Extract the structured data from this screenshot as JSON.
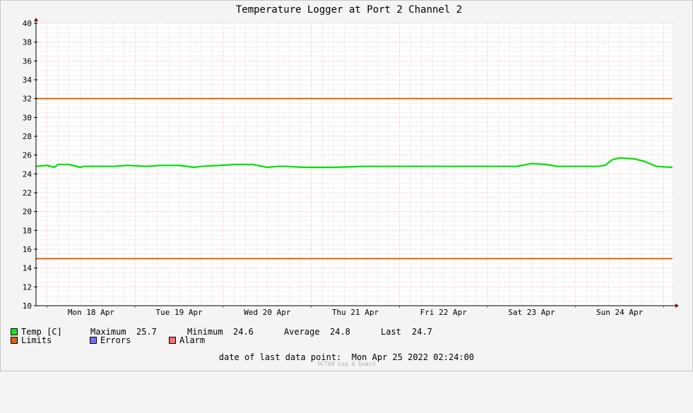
{
  "chart_data": {
    "type": "line",
    "title": "Temperature Logger at Port 2 Channel 2",
    "xlabel": "",
    "ylabel": "",
    "ylim": [
      10,
      40
    ],
    "yticks": [
      10,
      12,
      14,
      16,
      18,
      20,
      22,
      24,
      26,
      28,
      30,
      32,
      34,
      36,
      38,
      40
    ],
    "xlim": [
      "2022-04-17 21:00",
      "2022-04-25 02:24"
    ],
    "xtick_labels": [
      "Mon 18 Apr",
      "Tue 19 Apr",
      "Wed 20 Apr",
      "Thu 21 Apr",
      "Fri 22 Apr",
      "Sat 23 Apr",
      "Sun 24 Apr"
    ],
    "xtick_dates": [
      "2022-04-18 12:00",
      "2022-04-19 12:00",
      "2022-04-20 12:00",
      "2022-04-21 12:00",
      "2022-04-22 12:00",
      "2022-04-23 12:00",
      "2022-04-24 12:00"
    ],
    "grid": true,
    "legend_position": "bottom-left",
    "series": [
      {
        "name": "Temp [C]",
        "color": "#00e000",
        "x": [
          "2022-04-17 21:00",
          "2022-04-18 00:00",
          "2022-04-18 02:00",
          "2022-04-18 03:00",
          "2022-04-18 06:00",
          "2022-04-18 09:00",
          "2022-04-18 10:00",
          "2022-04-18 14:00",
          "2022-04-18 18:00",
          "2022-04-18 22:00",
          "2022-04-19 03:00",
          "2022-04-19 07:00",
          "2022-04-19 12:00",
          "2022-04-19 16:00",
          "2022-04-19 18:00",
          "2022-04-19 23:00",
          "2022-04-20 03:00",
          "2022-04-20 08:00",
          "2022-04-20 12:00",
          "2022-04-20 15:00",
          "2022-04-20 17:00",
          "2022-04-20 22:00",
          "2022-04-21 06:00",
          "2022-04-21 14:00",
          "2022-04-22 00:00",
          "2022-04-22 08:00",
          "2022-04-22 16:00",
          "2022-04-23 00:00",
          "2022-04-23 08:00",
          "2022-04-23 12:00",
          "2022-04-23 16:00",
          "2022-04-23 19:00",
          "2022-04-24 00:00",
          "2022-04-24 06:00",
          "2022-04-24 08:00",
          "2022-04-24 10:00",
          "2022-04-24 12:00",
          "2022-04-24 16:00",
          "2022-04-24 19:00",
          "2022-04-24 22:00",
          "2022-04-25 02:24"
        ],
        "values": [
          24.8,
          24.9,
          24.7,
          25.0,
          25.0,
          24.7,
          24.8,
          24.8,
          24.8,
          24.9,
          24.8,
          24.9,
          24.9,
          24.7,
          24.8,
          24.9,
          25.0,
          25.0,
          24.7,
          24.8,
          24.8,
          24.7,
          24.7,
          24.8,
          24.8,
          24.8,
          24.8,
          24.8,
          24.8,
          25.1,
          25.0,
          24.8,
          24.8,
          24.8,
          24.9,
          25.5,
          25.7,
          25.6,
          25.3,
          24.8,
          24.7
        ]
      },
      {
        "name": "Limits",
        "color": "#e06000",
        "x": [
          "2022-04-17 21:00",
          "2022-04-25 02:24"
        ],
        "values_upper": [
          32,
          32
        ],
        "values_lower": [
          15,
          15
        ]
      }
    ]
  },
  "legend": {
    "items": [
      {
        "label": "Temp [C]",
        "color": "#20e020"
      },
      {
        "label": "Limits",
        "color": "#e06010"
      },
      {
        "label": "Errors",
        "color": "#7070ff"
      },
      {
        "label": "Alarm",
        "color": "#ff7070"
      }
    ],
    "stats": {
      "max_label": "Maximum",
      "max_value": "25.7",
      "min_label": "Minimum",
      "min_value": "24.6",
      "avg_label": "Average",
      "avg_value": "24.8",
      "last_label": "Last",
      "last_value": "24.7"
    }
  },
  "footer": {
    "text": "date of last data point:  Mon Apr 25 2022 02:24:00",
    "credit": "OCTA8 Log & Guard"
  },
  "colors": {
    "background": "#f4f4f4",
    "plot_background": "#ffffff",
    "grid_minor": "#d0d0d0",
    "grid_major": "#ee9999",
    "axis_arrow": "#880000"
  }
}
